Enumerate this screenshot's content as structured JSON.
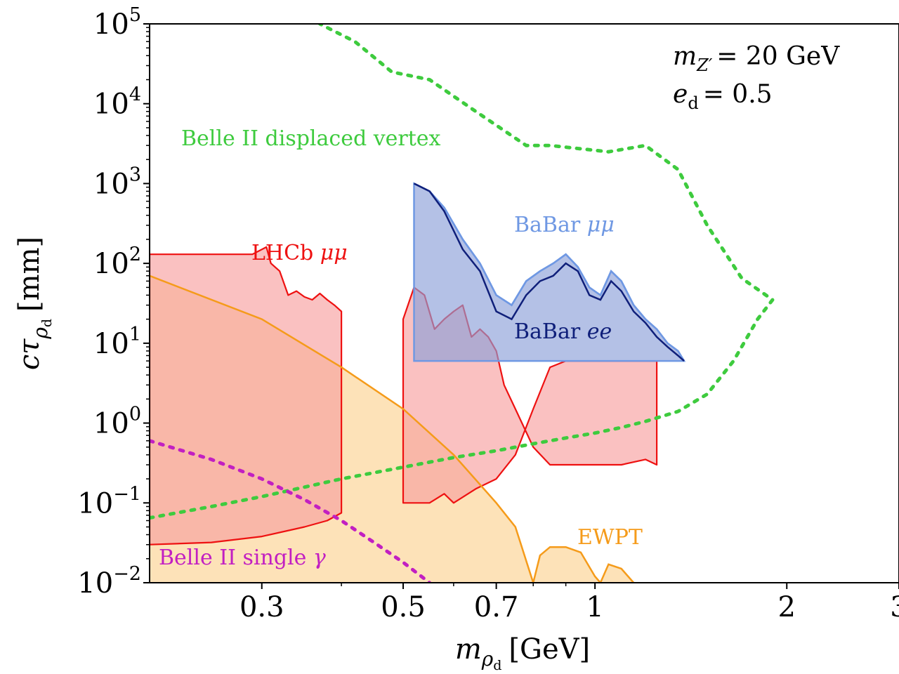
{
  "chart_data": {
    "type": "area",
    "x_scale": "log",
    "y_scale": "log",
    "xlim": [
      0.2,
      3
    ],
    "ylim": [
      0.01,
      100000
    ],
    "xlabel_main": "m",
    "xlabel_sub": "ρ",
    "xlabel_subsub": "d",
    "xlabel_unit": "[GeV]",
    "ylabel_main": "cτ",
    "ylabel_sub": "ρ",
    "ylabel_subsub": "d",
    "ylabel_unit": "[mm]",
    "x_ticks": [
      {
        "value": 0.3,
        "label": "0.3"
      },
      {
        "value": 0.5,
        "label": "0.5"
      },
      {
        "value": 0.7,
        "label": "0.7"
      },
      {
        "value": 1,
        "label": "1"
      },
      {
        "value": 2,
        "label": "2"
      },
      {
        "value": 3,
        "label": "3"
      }
    ],
    "y_ticks": [
      {
        "value": 100000,
        "base": "10",
        "exp": "5"
      },
      {
        "value": 10000,
        "base": "10",
        "exp": "4"
      },
      {
        "value": 1000,
        "base": "10",
        "exp": "3"
      },
      {
        "value": 100,
        "base": "10",
        "exp": "2"
      },
      {
        "value": 10,
        "base": "10",
        "exp": "1"
      },
      {
        "value": 1,
        "base": "10",
        "exp": "0"
      },
      {
        "value": 0.1,
        "base": "10",
        "exp": "−1"
      },
      {
        "value": 0.01,
        "base": "10",
        "exp": "−2"
      }
    ],
    "params": {
      "line1_sym": "m",
      "line1_sub": "Z′",
      "line1_value": "= 20 GeV",
      "line2_sym": "e",
      "line2_sub": "d",
      "line2_value": "= 0.5"
    },
    "colors": {
      "lhcb": "#ee1111",
      "lhcb_fill": "#f8a0a0",
      "ewpt": "#f59b1a",
      "ewpt_fill": "#fde2b8",
      "babar_mumu": "#6f98e3",
      "babar_ee": "#0f1f7a",
      "babar_fill": "#8ca0d8",
      "belle_dv": "#3ecb3e",
      "belle_gamma": "#c21fc2"
    },
    "series": [
      {
        "name": "Belle II displaced vertex",
        "label_parts": [
          "Belle II displaced vertex"
        ],
        "role": "dotted",
        "points": [
          [
            0.2,
            0.065
          ],
          [
            0.25,
            0.09
          ],
          [
            0.3,
            0.12
          ],
          [
            0.4,
            0.2
          ],
          [
            0.5,
            0.28
          ],
          [
            0.6,
            0.37
          ],
          [
            0.7,
            0.45
          ],
          [
            0.8,
            0.55
          ],
          [
            0.9,
            0.65
          ],
          [
            1.0,
            0.75
          ],
          [
            1.1,
            0.88
          ],
          [
            1.2,
            1.05
          ],
          [
            1.35,
            1.4
          ],
          [
            1.5,
            2.3
          ],
          [
            1.65,
            6
          ],
          [
            1.8,
            20
          ],
          [
            1.9,
            35
          ],
          [
            1.7,
            65
          ],
          [
            1.5,
            300
          ],
          [
            1.35,
            1500
          ],
          [
            1.2,
            3000
          ],
          [
            1.05,
            2500
          ],
          [
            0.85,
            3000
          ],
          [
            0.78,
            3000
          ],
          [
            0.65,
            8000
          ],
          [
            0.55,
            20000
          ],
          [
            0.48,
            25000
          ],
          [
            0.42,
            60000
          ],
          [
            0.37,
            100000
          ]
        ]
      },
      {
        "name": "Belle II single γ",
        "label_parts": [
          "Belle II single ",
          "γ"
        ],
        "role": "dotted",
        "points": [
          [
            0.2,
            0.6
          ],
          [
            0.25,
            0.35
          ],
          [
            0.3,
            0.2
          ],
          [
            0.35,
            0.11
          ],
          [
            0.4,
            0.06
          ],
          [
            0.45,
            0.032
          ],
          [
            0.5,
            0.018
          ],
          [
            0.55,
            0.01
          ]
        ]
      },
      {
        "name": "EWPT",
        "label_parts": [
          "EWPT"
        ],
        "role": "filled",
        "points": [
          [
            0.2,
            70
          ],
          [
            0.3,
            20
          ],
          [
            0.4,
            5
          ],
          [
            0.5,
            1.5
          ],
          [
            0.6,
            0.4
          ],
          [
            0.7,
            0.1
          ],
          [
            0.75,
            0.05
          ],
          [
            0.8,
            0.01
          ],
          [
            0.82,
            0.022
          ],
          [
            0.85,
            0.028
          ],
          [
            0.9,
            0.028
          ],
          [
            0.95,
            0.024
          ],
          [
            1.0,
            0.012
          ],
          [
            1.02,
            0.01
          ],
          [
            1.05,
            0.017
          ],
          [
            1.1,
            0.015
          ],
          [
            1.15,
            0.01
          ]
        ]
      },
      {
        "name": "LHCb μμ",
        "label_parts": [
          "LHCb ",
          "μμ"
        ],
        "role": "filled",
        "regions": [
          {
            "upper": [
              [
                0.2,
                130
              ],
              [
                0.25,
                130
              ],
              [
                0.29,
                130
              ],
              [
                0.305,
                160
              ],
              [
                0.31,
                100
              ],
              [
                0.32,
                80
              ],
              [
                0.33,
                40
              ],
              [
                0.34,
                45
              ],
              [
                0.35,
                38
              ],
              [
                0.36,
                35
              ],
              [
                0.37,
                42
              ],
              [
                0.38,
                35
              ],
              [
                0.39,
                30
              ],
              [
                0.4,
                25
              ]
            ],
            "lower": [
              [
                0.2,
                0.03
              ],
              [
                0.25,
                0.032
              ],
              [
                0.3,
                0.038
              ],
              [
                0.35,
                0.05
              ],
              [
                0.38,
                0.06
              ],
              [
                0.4,
                0.075
              ]
            ]
          },
          {
            "upper": [
              [
                0.5,
                20
              ],
              [
                0.52,
                50
              ],
              [
                0.54,
                40
              ],
              [
                0.56,
                15
              ],
              [
                0.58,
                20
              ],
              [
                0.6,
                25
              ],
              [
                0.62,
                30
              ],
              [
                0.64,
                12
              ],
              [
                0.66,
                15
              ],
              [
                0.68,
                12
              ],
              [
                0.7,
                8
              ],
              [
                0.72,
                3
              ],
              [
                0.75,
                1.5
              ],
              [
                0.8,
                0.5
              ],
              [
                0.85,
                0.3
              ],
              [
                0.9,
                0.3
              ],
              [
                1.0,
                0.3
              ],
              [
                1.1,
                0.3
              ],
              [
                1.2,
                0.35
              ],
              [
                1.25,
                0.3
              ]
            ],
            "lower": [
              [
                0.5,
                0.1
              ],
              [
                0.55,
                0.1
              ],
              [
                0.58,
                0.13
              ],
              [
                0.6,
                0.1
              ],
              [
                0.65,
                0.15
              ],
              [
                0.7,
                0.2
              ],
              [
                0.75,
                0.4
              ],
              [
                0.8,
                1.5
              ],
              [
                0.85,
                5
              ],
              [
                0.9,
                6
              ],
              [
                1.0,
                6
              ],
              [
                1.1,
                6
              ],
              [
                1.2,
                6
              ],
              [
                1.25,
                6
              ]
            ]
          }
        ]
      },
      {
        "name": "BaBar μμ",
        "label_parts": [
          "BaBar ",
          "μμ"
        ],
        "role": "filled",
        "points": [
          [
            0.52,
            1000
          ],
          [
            0.55,
            800
          ],
          [
            0.58,
            500
          ],
          [
            0.62,
            200
          ],
          [
            0.66,
            100
          ],
          [
            0.7,
            40
          ],
          [
            0.74,
            30
          ],
          [
            0.78,
            60
          ],
          [
            0.82,
            80
          ],
          [
            0.86,
            100
          ],
          [
            0.9,
            130
          ],
          [
            0.94,
            90
          ],
          [
            0.98,
            50
          ],
          [
            1.02,
            40
          ],
          [
            1.06,
            80
          ],
          [
            1.1,
            60
          ],
          [
            1.15,
            30
          ],
          [
            1.2,
            20
          ],
          [
            1.25,
            15
          ],
          [
            1.3,
            10
          ],
          [
            1.35,
            8
          ],
          [
            1.38,
            6
          ]
        ]
      },
      {
        "name": "BaBar ee",
        "label_parts": [
          "BaBar ",
          "ee"
        ],
        "role": "line",
        "points": [
          [
            0.52,
            1000
          ],
          [
            0.55,
            800
          ],
          [
            0.58,
            450
          ],
          [
            0.62,
            150
          ],
          [
            0.66,
            80
          ],
          [
            0.7,
            25
          ],
          [
            0.74,
            20
          ],
          [
            0.78,
            40
          ],
          [
            0.82,
            60
          ],
          [
            0.86,
            70
          ],
          [
            0.9,
            100
          ],
          [
            0.94,
            80
          ],
          [
            0.98,
            40
          ],
          [
            1.02,
            35
          ],
          [
            1.06,
            60
          ],
          [
            1.1,
            45
          ],
          [
            1.15,
            25
          ],
          [
            1.2,
            18
          ],
          [
            1.25,
            12
          ],
          [
            1.3,
            9
          ],
          [
            1.35,
            7
          ],
          [
            1.38,
            6
          ]
        ]
      }
    ]
  }
}
